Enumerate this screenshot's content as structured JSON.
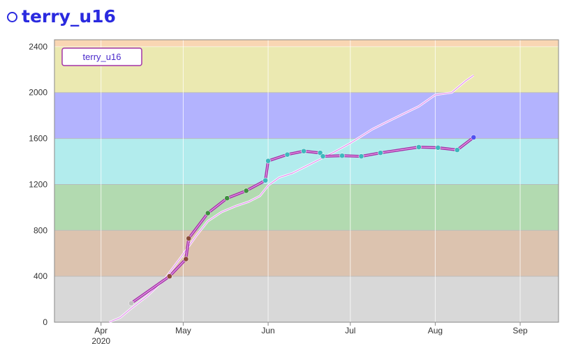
{
  "header": {
    "title": "terry_u16",
    "icon": "circle-icon"
  },
  "colors": {
    "title": "#2a2adf",
    "series_line": "#a433a8",
    "series_line_inner": "#e8a0ea",
    "reference_line": "#e48ff0",
    "band_gray": "#d8d8d8",
    "band_brown": "#dcc3af",
    "band_green": "#b2dab0",
    "band_cyan": "#b2eced",
    "band_blue": "#b3b3fe",
    "band_yellow": "#ebe9b1",
    "band_orange": "#f9d6b3"
  },
  "chart_data": {
    "type": "line",
    "legend": {
      "label": "terry_u16",
      "position": "top-left"
    },
    "ylim": [
      0,
      2460
    ],
    "yticks": [
      0,
      400,
      800,
      1200,
      1600,
      2000,
      2400
    ],
    "xlim": [
      "2020-03-15",
      "2020-09-15"
    ],
    "xticks": [
      {
        "date": "2020-04-01",
        "label": "Apr",
        "sublabel": "2020"
      },
      {
        "date": "2020-05-01",
        "label": "May",
        "sublabel": ""
      },
      {
        "date": "2020-06-01",
        "label": "Jun",
        "sublabel": ""
      },
      {
        "date": "2020-07-01",
        "label": "Jul",
        "sublabel": ""
      },
      {
        "date": "2020-08-01",
        "label": "Aug",
        "sublabel": ""
      },
      {
        "date": "2020-09-01",
        "label": "Sep",
        "sublabel": ""
      }
    ],
    "grid": true,
    "bands": [
      {
        "from": 0,
        "to": 400,
        "color": "#d8d8d8"
      },
      {
        "from": 400,
        "to": 800,
        "color": "#dcc3af"
      },
      {
        "from": 800,
        "to": 1200,
        "color": "#b2dab0"
      },
      {
        "from": 1200,
        "to": 1600,
        "color": "#b2eced"
      },
      {
        "from": 1600,
        "to": 2000,
        "color": "#b3b3fe"
      },
      {
        "from": 2000,
        "to": 2400,
        "color": "#ebe9b1"
      },
      {
        "from": 2400,
        "to": 2460,
        "color": "#f9d6b3"
      }
    ],
    "series": [
      {
        "name": "terry_u16",
        "points": [
          {
            "x": "2020-04-12",
            "y": 165,
            "color": "#c0c0c0"
          },
          {
            "x": "2020-04-26",
            "y": 400,
            "color": "#8b4a3a"
          },
          {
            "x": "2020-05-02",
            "y": 550,
            "color": "#8b4a3a"
          },
          {
            "x": "2020-05-03",
            "y": 730,
            "color": "#8b4a3a"
          },
          {
            "x": "2020-05-10",
            "y": 950,
            "color": "#3f8f3f"
          },
          {
            "x": "2020-05-17",
            "y": 1080,
            "color": "#3f8f3f"
          },
          {
            "x": "2020-05-24",
            "y": 1145,
            "color": "#3f8f3f"
          },
          {
            "x": "2020-05-31",
            "y": 1235,
            "color": "#3db8bd"
          },
          {
            "x": "2020-06-01",
            "y": 1405,
            "color": "#3db8bd"
          },
          {
            "x": "2020-06-08",
            "y": 1460,
            "color": "#3db8bd"
          },
          {
            "x": "2020-06-14",
            "y": 1490,
            "color": "#3db8bd"
          },
          {
            "x": "2020-06-20",
            "y": 1475,
            "color": "#3db8bd"
          },
          {
            "x": "2020-06-21",
            "y": 1445,
            "color": "#3db8bd"
          },
          {
            "x": "2020-06-28",
            "y": 1450,
            "color": "#3db8bd"
          },
          {
            "x": "2020-07-05",
            "y": 1445,
            "color": "#3db8bd"
          },
          {
            "x": "2020-07-12",
            "y": 1475,
            "color": "#3db8bd"
          },
          {
            "x": "2020-07-26",
            "y": 1525,
            "color": "#3db8bd"
          },
          {
            "x": "2020-08-02",
            "y": 1520,
            "color": "#3db8bd"
          },
          {
            "x": "2020-08-09",
            "y": 1500,
            "color": "#3db8bd"
          },
          {
            "x": "2020-08-15",
            "y": 1610,
            "color": "#5050f0"
          }
        ]
      },
      {
        "name": "",
        "style": "thin",
        "points": [
          {
            "x": "2020-04-04",
            "y": 0
          },
          {
            "x": "2020-04-08",
            "y": 40
          },
          {
            "x": "2020-04-12",
            "y": 120
          },
          {
            "x": "2020-04-18",
            "y": 230
          },
          {
            "x": "2020-04-24",
            "y": 370
          },
          {
            "x": "2020-04-30",
            "y": 560
          },
          {
            "x": "2020-05-03",
            "y": 660
          },
          {
            "x": "2020-05-06",
            "y": 760
          },
          {
            "x": "2020-05-10",
            "y": 880
          },
          {
            "x": "2020-05-15",
            "y": 960
          },
          {
            "x": "2020-05-20",
            "y": 1010
          },
          {
            "x": "2020-05-25",
            "y": 1050
          },
          {
            "x": "2020-05-29",
            "y": 1100
          },
          {
            "x": "2020-06-01",
            "y": 1190
          },
          {
            "x": "2020-06-05",
            "y": 1260
          },
          {
            "x": "2020-06-10",
            "y": 1300
          },
          {
            "x": "2020-06-15",
            "y": 1360
          },
          {
            "x": "2020-06-20",
            "y": 1420
          },
          {
            "x": "2020-06-25",
            "y": 1480
          },
          {
            "x": "2020-07-01",
            "y": 1560
          },
          {
            "x": "2020-07-05",
            "y": 1620
          },
          {
            "x": "2020-07-09",
            "y": 1680
          },
          {
            "x": "2020-07-14",
            "y": 1740
          },
          {
            "x": "2020-07-20",
            "y": 1810
          },
          {
            "x": "2020-07-26",
            "y": 1880
          },
          {
            "x": "2020-08-01",
            "y": 1980
          },
          {
            "x": "2020-08-07",
            "y": 2000
          },
          {
            "x": "2020-08-12",
            "y": 2100
          },
          {
            "x": "2020-08-15",
            "y": 2150
          }
        ]
      }
    ]
  }
}
